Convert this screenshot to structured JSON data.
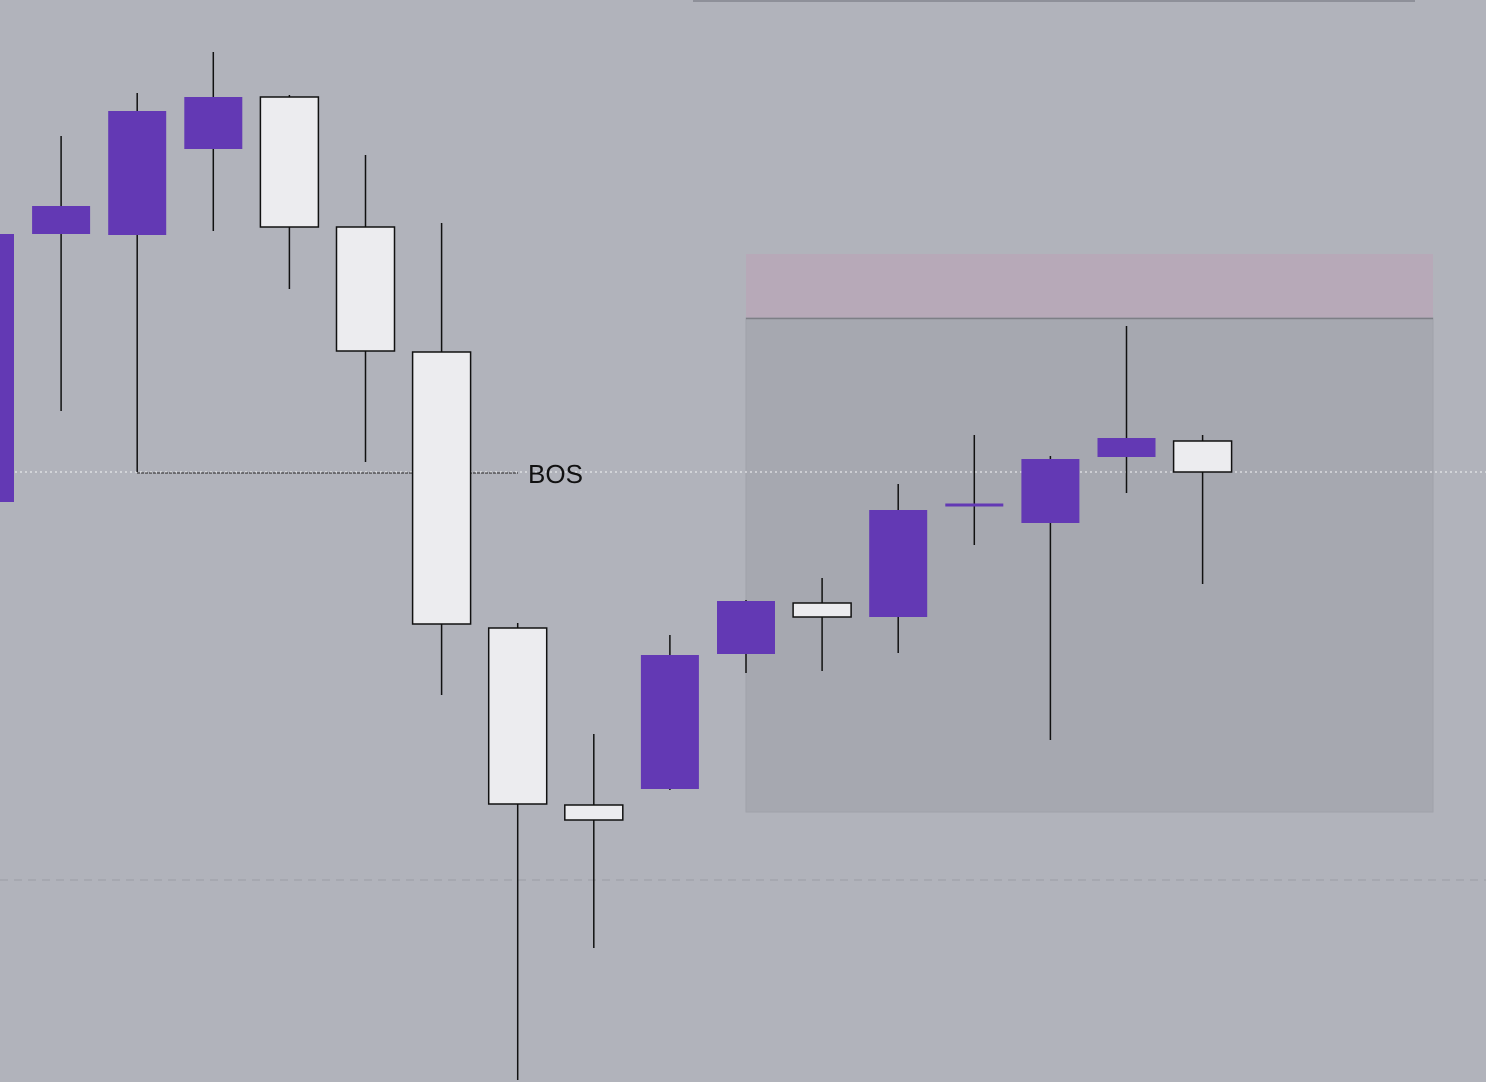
{
  "chart_data": {
    "type": "candlestick",
    "annotation": "BOS",
    "categories": [
      null,
      null,
      null,
      null,
      null,
      null,
      null,
      null,
      null,
      null,
      null,
      null,
      null,
      null,
      null,
      null,
      null
    ],
    "open": [
      580,
      848,
      847,
      933,
      985,
      855,
      730,
      454,
      277,
      293,
      428,
      479,
      465,
      577,
      559,
      625,
      641
    ],
    "high": [
      848,
      946,
      989,
      1030,
      987,
      927,
      859,
      459,
      348,
      447,
      482,
      504,
      598,
      647,
      626,
      756,
      647
    ],
    "low": [
      580,
      671,
      610,
      851,
      793,
      620,
      387,
      2,
      134,
      292,
      409,
      411,
      429,
      537,
      342,
      589,
      498
    ],
    "close": [
      848,
      876,
      971,
      985,
      855,
      731,
      458,
      278,
      262,
      427,
      481,
      465,
      572,
      577,
      623,
      644,
      610
    ],
    "up_color": "#6339b4",
    "down_color": "#ececef",
    "ylim": [
      0,
      1082
    ]
  }
}
